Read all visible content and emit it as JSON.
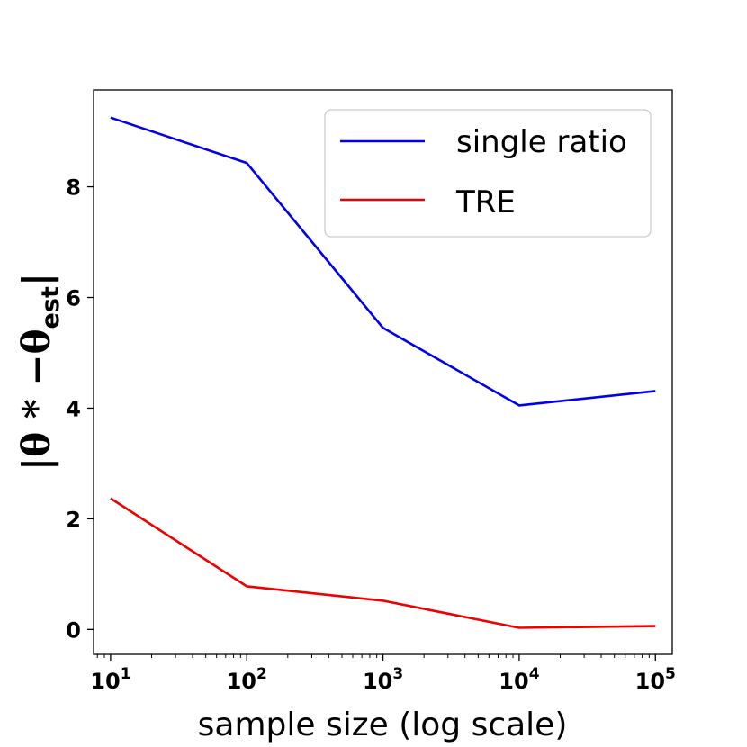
{
  "chart_data": {
    "type": "line",
    "x": [
      10,
      100,
      1000,
      10000,
      100000
    ],
    "x_scale": "log",
    "x_tick_labels": [
      {
        "base": "10",
        "exp": "1"
      },
      {
        "base": "10",
        "exp": "2"
      },
      {
        "base": "10",
        "exp": "3"
      },
      {
        "base": "10",
        "exp": "4"
      },
      {
        "base": "10",
        "exp": "5"
      }
    ],
    "series": [
      {
        "name": "single ratio",
        "color": "#0000ee",
        "values": [
          9.25,
          8.43,
          5.45,
          4.05,
          4.31
        ]
      },
      {
        "name": "TRE",
        "color": "#ee0000",
        "values": [
          2.37,
          0.78,
          0.52,
          0.03,
          0.06
        ]
      }
    ],
    "xlabel": "sample size (log scale)",
    "ylabel": {
      "main": "|θ * −θ",
      "sub": "est",
      "close": "|"
    },
    "y_ticks": [
      "0",
      "2",
      "4",
      "6",
      "8"
    ],
    "xlim": [
      7.5,
      133000
    ],
    "ylim": [
      -0.45,
      9.75
    ],
    "legend": {
      "location": "top-right"
    }
  }
}
